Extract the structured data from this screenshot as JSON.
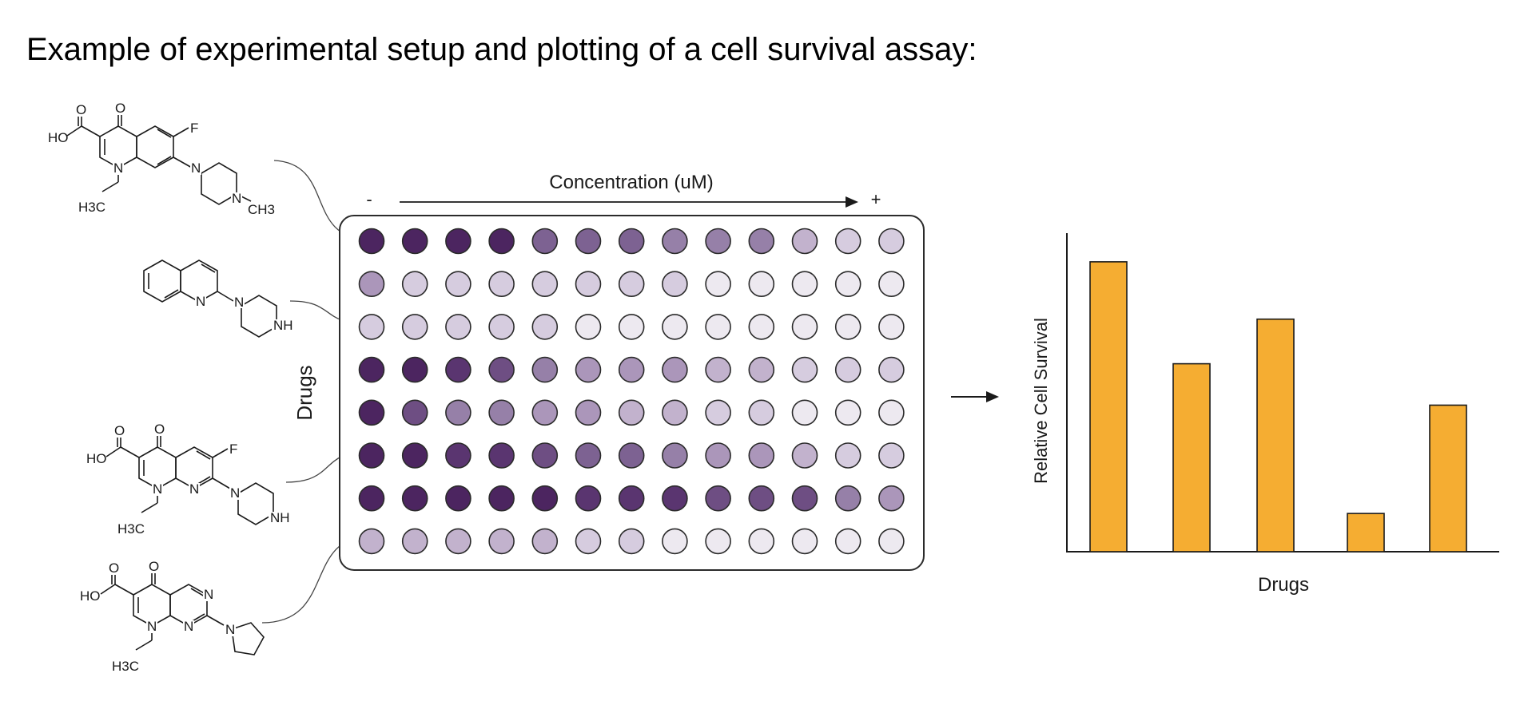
{
  "title": "Example of experimental setup and plotting of a cell survival assay:",
  "plate": {
    "concentration_label": "Concentration (uM)",
    "minus_label": "-",
    "plus_label": "+",
    "rows_label": "Drugs",
    "columns": 13,
    "well_intensity_levels": [
      [
        9,
        9,
        9,
        9,
        6,
        6,
        6,
        5,
        5,
        5,
        3,
        2,
        2
      ],
      [
        4,
        2,
        2,
        2,
        2,
        2,
        2,
        2,
        1,
        1,
        1,
        1,
        1
      ],
      [
        2,
        2,
        2,
        2,
        2,
        1,
        1,
        1,
        1,
        1,
        1,
        1,
        1
      ],
      [
        9,
        9,
        8,
        7,
        5,
        4,
        4,
        4,
        3,
        3,
        2,
        2,
        2
      ],
      [
        9,
        7,
        5,
        5,
        4,
        4,
        3,
        3,
        2,
        2,
        1,
        1,
        1
      ],
      [
        9,
        9,
        8,
        8,
        7,
        6,
        6,
        5,
        4,
        4,
        3,
        2,
        2
      ],
      [
        9,
        9,
        9,
        9,
        9,
        8,
        8,
        8,
        7,
        7,
        7,
        5,
        4
      ],
      [
        3,
        3,
        3,
        3,
        3,
        2,
        2,
        1,
        1,
        1,
        1,
        1,
        1
      ]
    ],
    "colors": {
      "well_palette": [
        "#ffffff",
        "#ede9f0",
        "#d6ccdf",
        "#c2b2cd",
        "#ab96ba",
        "#9680a8",
        "#7d6292",
        "#6e4e83",
        "#5a3570",
        "#4c2560"
      ],
      "well_stroke": "#2b2b2b",
      "plate_stroke": "#2b2b2b"
    }
  },
  "molecules": [
    {
      "name": "ofloxacin-like quinolone",
      "atoms": [
        "O",
        "O",
        "HO",
        "F",
        "N",
        "N",
        "N",
        "H3C",
        "CH3"
      ]
    },
    {
      "name": "quinolinyl piperazine",
      "atoms": [
        "N",
        "N",
        "NH"
      ]
    },
    {
      "name": "enoxacin-like naphthyridine",
      "atoms": [
        "O",
        "O",
        "HO",
        "F",
        "N",
        "N",
        "N",
        "NH",
        "H3C"
      ]
    },
    {
      "name": "piromidic acid-like",
      "atoms": [
        "O",
        "O",
        "HO",
        "N",
        "N",
        "N",
        "N",
        "H3C"
      ]
    }
  ],
  "connector_rows": [
    0,
    2,
    5,
    7
  ],
  "flow_arrow": "→",
  "chart_data": {
    "type": "bar",
    "title": "",
    "xlabel": "Drugs",
    "ylabel": "Relative Cell Survival",
    "categories": [
      "",
      "",
      "",
      "",
      ""
    ],
    "values": [
      0.91,
      0.59,
      0.73,
      0.12,
      0.46
    ],
    "ylim": [
      0,
      1
    ],
    "grid": false,
    "colors": {
      "bar": "#f5ad32",
      "bar_stroke": "#1a1a1a",
      "axis": "#1a1a1a"
    }
  }
}
